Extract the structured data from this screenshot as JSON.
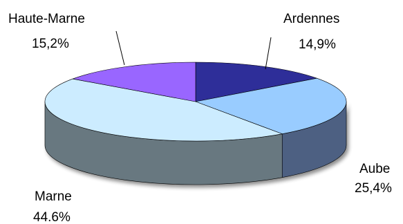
{
  "chart_data": {
    "type": "pie",
    "three_d": true,
    "start_angle_deg": -90,
    "direction": "clockwise",
    "slices": [
      {
        "category": "Ardennes",
        "value": 14.9,
        "value_label": "14,9%",
        "top_color": "#2E2E99",
        "side_color": "#1E1E6E"
      },
      {
        "category": "Aube",
        "value": 25.4,
        "value_label": "25,4%",
        "top_color": "#99CCFF",
        "side_color": "#4D6182"
      },
      {
        "category": "Marne",
        "value": 44.6,
        "value_label": "44.6%",
        "top_color": "#CCECFF",
        "side_color": "#687880"
      },
      {
        "category": "Haute-Marne",
        "value": 15.2,
        "value_label": "15,2%",
        "top_color": "#9966FF",
        "side_color": "#5A3D99"
      }
    ],
    "legend": "none"
  }
}
